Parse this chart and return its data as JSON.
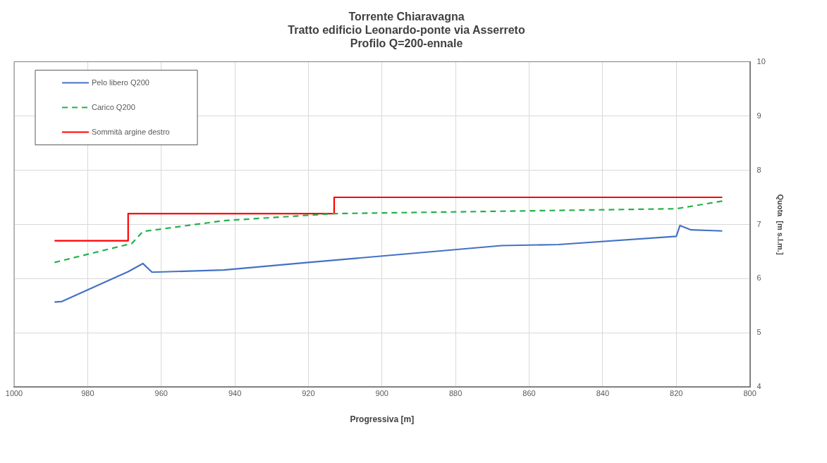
{
  "chart_data": {
    "type": "line",
    "title": "Torrente Chiaravagna\nTratto edificio Leonardo-ponte via Asserreto\nProfilo Q=200-ennale",
    "xlabel": "Progressiva [m]",
    "ylabel": "Quota  [m s.l.m.]",
    "xlim": [
      1000,
      800
    ],
    "xticks": [
      1000,
      980,
      960,
      940,
      920,
      900,
      880,
      860,
      840,
      820,
      800
    ],
    "ylim": [
      4,
      10
    ],
    "yticks": [
      4,
      5,
      6,
      7,
      8,
      9,
      10
    ],
    "grid": true,
    "legend": "top left",
    "marker": "none",
    "series": [
      {
        "name": "Pelo libero Q200",
        "color": "#4472c4",
        "line_style": "solid",
        "x": [
          989,
          987,
          969,
          965,
          962.5,
          943,
          920,
          867.5,
          852,
          820,
          819,
          816,
          807.5
        ],
        "values": [
          5.57,
          5.58,
          6.13,
          6.28,
          6.12,
          6.16,
          6.3,
          6.61,
          6.63,
          6.78,
          6.98,
          6.9,
          6.88
        ]
      },
      {
        "name": "Carico Q200",
        "color": "#22b24c",
        "line_style": "dashed",
        "x": [
          989,
          968,
          965,
          943,
          913,
          820,
          807.5
        ],
        "values": [
          6.3,
          6.65,
          6.87,
          7.07,
          7.2,
          7.29,
          7.43
        ]
      },
      {
        "name": "Sommità argine destro",
        "color": "#ff0000",
        "line_style": "solid",
        "x": [
          989,
          969,
          969,
          913,
          913,
          807.5
        ],
        "values": [
          6.7,
          6.7,
          7.2,
          7.2,
          7.5,
          7.5
        ]
      }
    ]
  }
}
